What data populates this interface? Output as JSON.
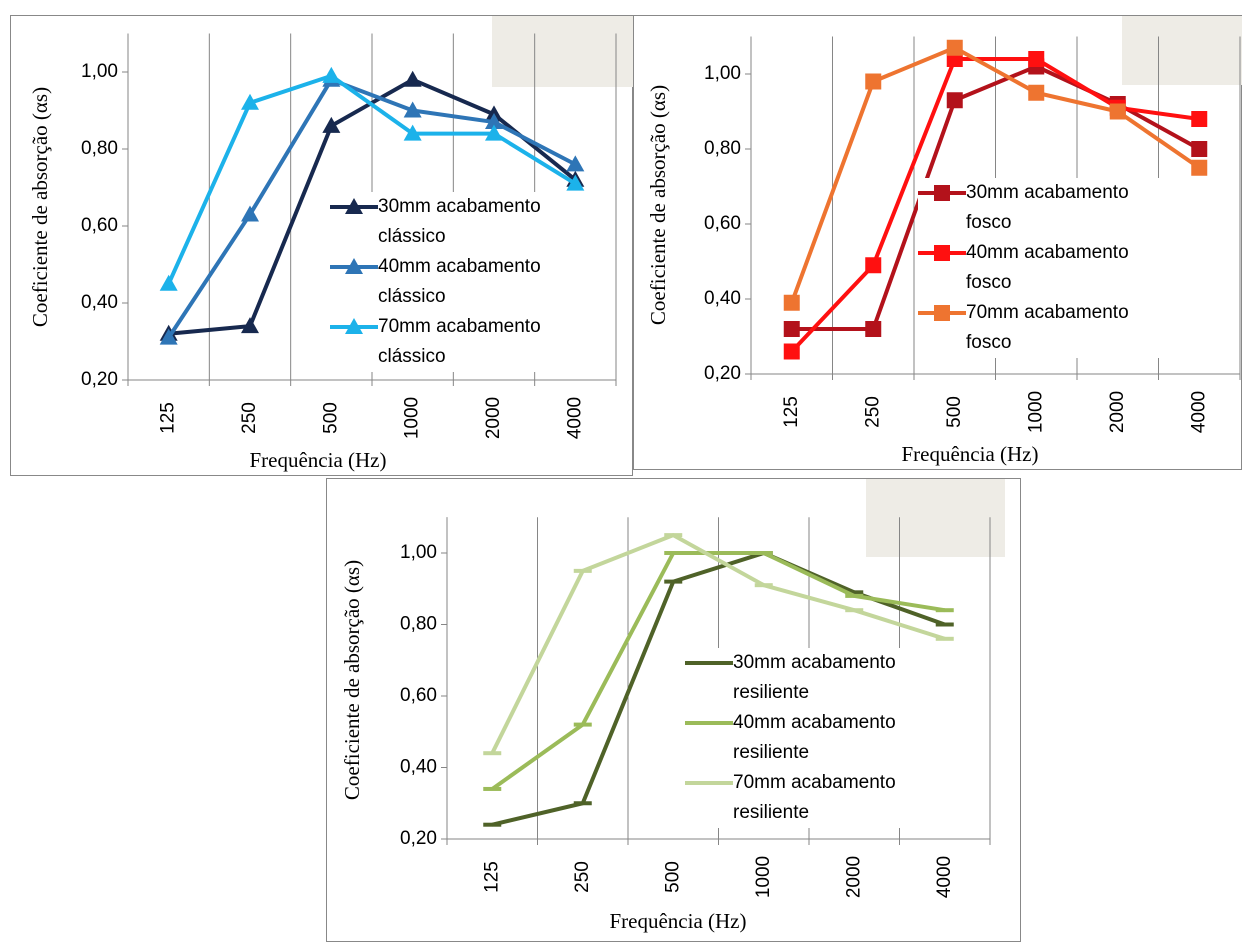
{
  "chart_data": [
    {
      "type": "line",
      "marker": "triangle",
      "grid": true,
      "x_label": "Frequência (Hz)",
      "y_label": "Coeficiente de absorção (αs)",
      "categories": [
        "125",
        "250",
        "500",
        "1000",
        "2000",
        "4000"
      ],
      "ylim": [
        0.2,
        1.1
      ],
      "yticks": [
        {
          "value": 0.2,
          "label": "0,20"
        },
        {
          "value": 0.4,
          "label": "0,40"
        },
        {
          "value": 0.6,
          "label": "0,60"
        },
        {
          "value": 0.8,
          "label": "0,80"
        },
        {
          "value": 1.0,
          "label": "1,00"
        }
      ],
      "series": [
        {
          "name": "30mm acabamento clássico",
          "color": "#17294f",
          "values": [
            0.32,
            0.34,
            0.86,
            0.98,
            0.89,
            0.72
          ]
        },
        {
          "name": "40mm acabamento clássico",
          "color": "#2e75b6",
          "values": [
            0.31,
            0.63,
            0.98,
            0.9,
            0.87,
            0.76
          ]
        },
        {
          "name": "70mm acabamento clássico",
          "color": "#1cb2ea",
          "values": [
            0.45,
            0.92,
            0.99,
            0.84,
            0.84,
            0.71
          ]
        }
      ]
    },
    {
      "type": "line",
      "marker": "square",
      "grid": true,
      "x_label": "Frequência (Hz)",
      "y_label": "Coeficiente de absorção (αs)",
      "categories": [
        "125",
        "250",
        "500",
        "1000",
        "2000",
        "4000"
      ],
      "ylim": [
        0.2,
        1.1
      ],
      "yticks": [
        {
          "value": 0.2,
          "label": "0,20"
        },
        {
          "value": 0.4,
          "label": "0,40"
        },
        {
          "value": 0.6,
          "label": "0,60"
        },
        {
          "value": 0.8,
          "label": "0,80"
        },
        {
          "value": 1.0,
          "label": "1,00"
        }
      ],
      "series": [
        {
          "name": "30mm acabamento fosco",
          "color": "#b3121b",
          "values": [
            0.32,
            0.32,
            0.93,
            1.02,
            0.92,
            0.8
          ]
        },
        {
          "name": "40mm acabamento fosco",
          "color": "#ff1010",
          "values": [
            0.26,
            0.49,
            1.04,
            1.04,
            0.91,
            0.88
          ]
        },
        {
          "name": "70mm acabamento fosco",
          "color": "#ee7430",
          "values": [
            0.39,
            0.98,
            1.07,
            0.95,
            0.9,
            0.75
          ]
        }
      ]
    },
    {
      "type": "line",
      "marker": "dash",
      "grid": true,
      "x_label": "Frequência (Hz)",
      "y_label": "Coeficiente de absorção (αs)",
      "categories": [
        "125",
        "250",
        "500",
        "1000",
        "2000",
        "4000"
      ],
      "ylim": [
        0.2,
        1.1
      ],
      "yticks": [
        {
          "value": 0.2,
          "label": "0,20"
        },
        {
          "value": 0.4,
          "label": "0,40"
        },
        {
          "value": 0.6,
          "label": "0,60"
        },
        {
          "value": 0.8,
          "label": "0,80"
        },
        {
          "value": 1.0,
          "label": "1,00"
        }
      ],
      "series": [
        {
          "name": "30mm acabamento resiliente",
          "color": "#4f6228",
          "values": [
            0.24,
            0.3,
            0.92,
            1.0,
            0.89,
            0.8
          ]
        },
        {
          "name": "40mm acabamento resiliente",
          "color": "#9bbb59",
          "values": [
            0.34,
            0.52,
            1.0,
            1.0,
            0.88,
            0.84
          ]
        },
        {
          "name": "70mm acabamento resiliente",
          "color": "#c3d69b",
          "values": [
            0.44,
            0.95,
            1.05,
            0.91,
            0.84,
            0.76
          ]
        }
      ]
    }
  ]
}
